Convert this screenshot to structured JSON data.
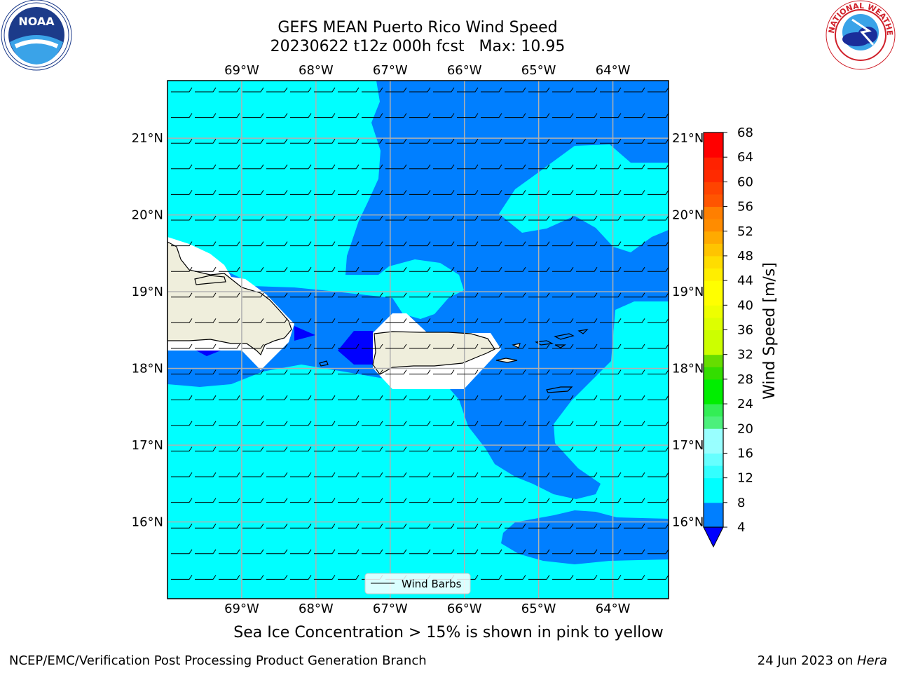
{
  "header": {
    "title_line1": "GEFS MEAN Puerto Rico Wind Speed",
    "title_line2": "20230622 t12z 000h fcst   Max: 10.95"
  },
  "logos": {
    "left": {
      "name": "NOAA",
      "ring_text": "NATIONAL OCEANIC AND ATMOSPHERIC ADMINISTRATION · U.S. DEPARTMENT OF COMMERCE"
    },
    "right": {
      "name": "NATIONAL WEATHER SERVICE"
    }
  },
  "caption": "Sea Ice Concentration > 15% is shown in pink to yellow",
  "footer": {
    "left": "NCEP/EMC/Verification Post Processing Product Generation Branch",
    "right_date": "24 Jun 2023 on ",
    "right_host": "Hera"
  },
  "legend": {
    "label": "Wind Barbs"
  },
  "colors": {
    "ocean_light": "#00ffff",
    "ocean_dark": "#007fff",
    "ocean_deep": "#0000ff",
    "land": "#efeedc",
    "grid": "#b0b0b0"
  },
  "chart_data": {
    "type": "heatmap",
    "title": "GEFS MEAN Puerto Rico Wind Speed",
    "subtitle": "20230622 t12z 000h fcst   Max: 10.95",
    "max_value": 10.95,
    "x_ticks": [
      "69°W",
      "68°W",
      "67°W",
      "66°W",
      "65°W",
      "64°W"
    ],
    "y_ticks": [
      "21°N",
      "20°N",
      "19°N",
      "18°N",
      "17°N",
      "16°N"
    ],
    "lon_range": [
      -70.0,
      -63.25
    ],
    "lat_range": [
      15.0,
      21.75
    ],
    "colorbar": {
      "label": "Wind Speed [m/s]",
      "ticks": [
        4,
        8,
        12,
        16,
        20,
        24,
        28,
        32,
        36,
        40,
        44,
        48,
        52,
        56,
        60,
        64,
        68
      ],
      "bins": [
        {
          "min": 4,
          "max": 6,
          "color": "#007fff"
        },
        {
          "min": 6,
          "max": 8,
          "color": "#007fff"
        },
        {
          "min": 8,
          "max": 10,
          "color": "#00ffff"
        },
        {
          "min": 10,
          "max": 12,
          "color": "#00ffff"
        },
        {
          "min": 12,
          "max": 14,
          "color": "#33ffff"
        },
        {
          "min": 14,
          "max": 16,
          "color": "#66ffff"
        },
        {
          "min": 16,
          "max": 18,
          "color": "#99ffff"
        },
        {
          "min": 18,
          "max": 20,
          "color": "#99ffff"
        },
        {
          "min": 20,
          "max": 22,
          "color": "#4cf07c"
        },
        {
          "min": 22,
          "max": 24,
          "color": "#33ee55"
        },
        {
          "min": 24,
          "max": 26,
          "color": "#00ee00"
        },
        {
          "min": 26,
          "max": 28,
          "color": "#00ee00"
        },
        {
          "min": 28,
          "max": 30,
          "color": "#33dd00"
        },
        {
          "min": 30,
          "max": 32,
          "color": "#66dd00"
        },
        {
          "min": 32,
          "max": 34,
          "color": "#ccff00"
        },
        {
          "min": 34,
          "max": 36,
          "color": "#ccff00"
        },
        {
          "min": 36,
          "max": 38,
          "color": "#ddff00"
        },
        {
          "min": 38,
          "max": 40,
          "color": "#eeff00"
        },
        {
          "min": 40,
          "max": 42,
          "color": "#ffff00"
        },
        {
          "min": 42,
          "max": 44,
          "color": "#ffff00"
        },
        {
          "min": 44,
          "max": 46,
          "color": "#ffee00"
        },
        {
          "min": 46,
          "max": 48,
          "color": "#ffdd00"
        },
        {
          "min": 48,
          "max": 50,
          "color": "#ffc400"
        },
        {
          "min": 50,
          "max": 52,
          "color": "#ffaa00"
        },
        {
          "min": 52,
          "max": 54,
          "color": "#ff8c00"
        },
        {
          "min": 54,
          "max": 56,
          "color": "#ff7f00"
        },
        {
          "min": 56,
          "max": 58,
          "color": "#ff5500"
        },
        {
          "min": 58,
          "max": 60,
          "color": "#ff4400"
        },
        {
          "min": 60,
          "max": 62,
          "color": "#ff2a00"
        },
        {
          "min": 62,
          "max": 64,
          "color": "#ff2200"
        },
        {
          "min": 64,
          "max": 66,
          "color": "#ff0000"
        },
        {
          "min": 66,
          "max": 68,
          "color": "#ff0000"
        }
      ],
      "under_color": "#0000ff"
    },
    "grid": true,
    "legend_position": "bottom-center"
  }
}
